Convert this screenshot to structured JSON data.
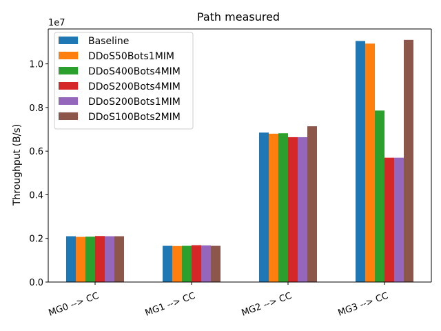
{
  "chart_data": {
    "type": "bar",
    "title": "Path measured",
    "xlabel": "",
    "ylabel": "Throughput (B/s)",
    "y_offset_label": "1e7",
    "y_scale": 10000000,
    "ylim": [
      0,
      11600000
    ],
    "y_ticks": [
      0,
      2000000,
      4000000,
      6000000,
      8000000,
      10000000
    ],
    "y_tick_labels": [
      "0.0",
      "0.2",
      "0.4",
      "0.6",
      "0.8",
      "1.0"
    ],
    "grid": false,
    "legend_position": "top-left",
    "categories": [
      "MG0 --> CC",
      "MG1 --> CC",
      "MG2 --> CC",
      "MG3 --> CC"
    ],
    "series": [
      {
        "name": "Baseline",
        "color": "#1f77b4",
        "values": [
          2100000,
          1660000,
          6850000,
          11050000
        ]
      },
      {
        "name": "DDoS50Bots1MIM",
        "color": "#ff7f0e",
        "values": [
          2070000,
          1650000,
          6800000,
          10930000
        ]
      },
      {
        "name": "DDoS400Bots4MIM",
        "color": "#2ca02c",
        "values": [
          2080000,
          1660000,
          6820000,
          7860000
        ]
      },
      {
        "name": "DDoS200Bots4MIM",
        "color": "#d62728",
        "values": [
          2110000,
          1690000,
          6640000,
          5700000
        ]
      },
      {
        "name": "DDoS200Bots1MIM",
        "color": "#9467bd",
        "values": [
          2100000,
          1680000,
          6640000,
          5700000
        ]
      },
      {
        "name": "DDoS100Bots2MIM",
        "color": "#8c564b",
        "values": [
          2100000,
          1660000,
          7140000,
          11100000
        ]
      }
    ]
  }
}
